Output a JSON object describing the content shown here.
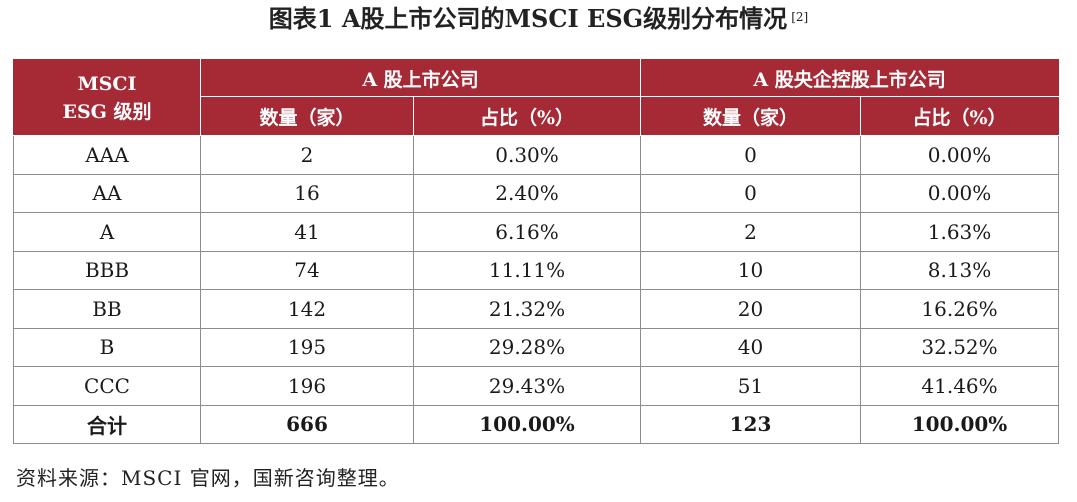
{
  "title": "图表1  A股上市公司的MSCI ESG级别分布情况",
  "title_ref": "[2]",
  "table": {
    "header_rating": "MSCI ESG 级别",
    "group_a": "A 股上市公司",
    "group_b": "A 股央企控股上市公司",
    "col_count": "数量（家）",
    "col_ratio": "占比（%）",
    "rows": [
      [
        "AAA",
        "2",
        "0.30%",
        "0",
        "0.00%"
      ],
      [
        "AA",
        "16",
        "2.40%",
        "0",
        "0.00%"
      ],
      [
        "A",
        "41",
        "6.16%",
        "2",
        "1.63%"
      ],
      [
        "BBB",
        "74",
        "11.11%",
        "10",
        "8.13%"
      ],
      [
        "BB",
        "142",
        "21.32%",
        "20",
        "16.26%"
      ],
      [
        "B",
        "195",
        "29.28%",
        "40",
        "32.52%"
      ],
      [
        "CCC",
        "196",
        "29.43%",
        "51",
        "41.46%"
      ]
    ],
    "total": [
      "合计",
      "666",
      "100.00%",
      "123",
      "100.00%"
    ]
  },
  "source": "资料来源：MSCI 官网，国新咨询整理。",
  "colors": {
    "header_bg": "#a52a36",
    "header_text": "#ffffff",
    "border": "#8c8c8c"
  }
}
